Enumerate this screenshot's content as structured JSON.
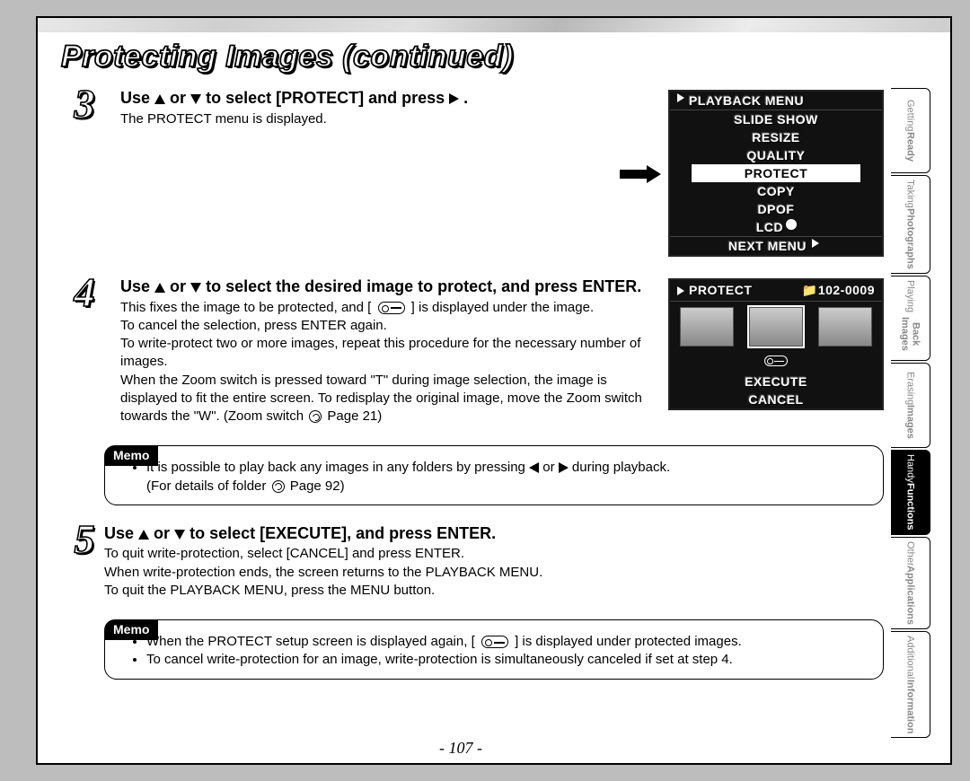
{
  "title": "Protecting Images (continued)",
  "page_number": "- 107 -",
  "steps": {
    "s3": {
      "num": "3",
      "head_prefix": "Use ",
      "head_mid": " or ",
      "head_suffix": " to select [PROTECT] and press ",
      "head_end": ".",
      "line1": "The PROTECT menu is displayed."
    },
    "s4": {
      "num": "4",
      "head_prefix": "Use ",
      "head_mid": " or ",
      "head_suffix": " to select the desired image to protect, and press ENTER.",
      "l1a": "This fixes the image to be protected, and [",
      "l1b": "] is displayed under the image.",
      "l2": "To cancel the selection, press ENTER again.",
      "l3": "To write-protect two or more images, repeat this procedure for the necessary number of images.",
      "l4a": "When the Zoom switch is pressed toward \"T\" during image selection, the image is displayed to fit the entire screen. To redisplay the original image, move the Zoom switch towards the \"W\". (Zoom switch ",
      "l4b": " Page 21)"
    },
    "s5": {
      "num": "5",
      "head_prefix": "Use ",
      "head_mid": " or ",
      "head_suffix": " to select [EXECUTE], and press ENTER.",
      "l1": "To quit write-protection, select [CANCEL] and press ENTER.",
      "l2": "When write-protection ends, the screen returns to the PLAYBACK MENU.",
      "l3": "To quit the PLAYBACK MENU, press the MENU button."
    }
  },
  "memo1": {
    "label": "Memo",
    "b1a": "It is possible to play back any images in any folders by pressing ",
    "b1b": " or ",
    "b1c": " during playback.",
    "b2a": "(For details of folder ",
    "b2b": " Page 92)"
  },
  "memo2": {
    "label": "Memo",
    "b1a": "When the PROTECT setup screen is displayed again, [",
    "b1b": "] is displayed under protected images.",
    "b2": "To cancel write-protection for an image, write-protection is simultaneously canceled if set at step 4."
  },
  "lcd1": {
    "title": "PLAYBACK MENU",
    "items": [
      "SLIDE SHOW",
      "RESIZE",
      "QUALITY",
      "PROTECT",
      "COPY",
      "DPOF",
      "LCD"
    ],
    "selected_index": 3,
    "footer": "NEXT MENU"
  },
  "lcd2": {
    "title": "PROTECT",
    "counter": "102-0009",
    "opt1": "EXECUTE",
    "opt2": "CANCEL"
  },
  "tabs": [
    {
      "l1": "Getting",
      "l2": "Ready"
    },
    {
      "l1": "Taking",
      "l2": "Photographs"
    },
    {
      "l1": "Playing",
      "l2": "Back Images"
    },
    {
      "l1": "Erasing",
      "l2": "Images"
    },
    {
      "l1": "Handy",
      "l2": "Functions"
    },
    {
      "l1": "Other",
      "l2": "Applications"
    },
    {
      "l1": "Additional",
      "l2": "Information"
    }
  ],
  "active_tab_index": 4,
  "colors": {
    "page_bg": "#ffffff",
    "outer_bg": "#bdbdbd",
    "lcd_bg": "#111111",
    "lcd_fg": "#ffffff",
    "tab_inactive_text": "#888888"
  }
}
